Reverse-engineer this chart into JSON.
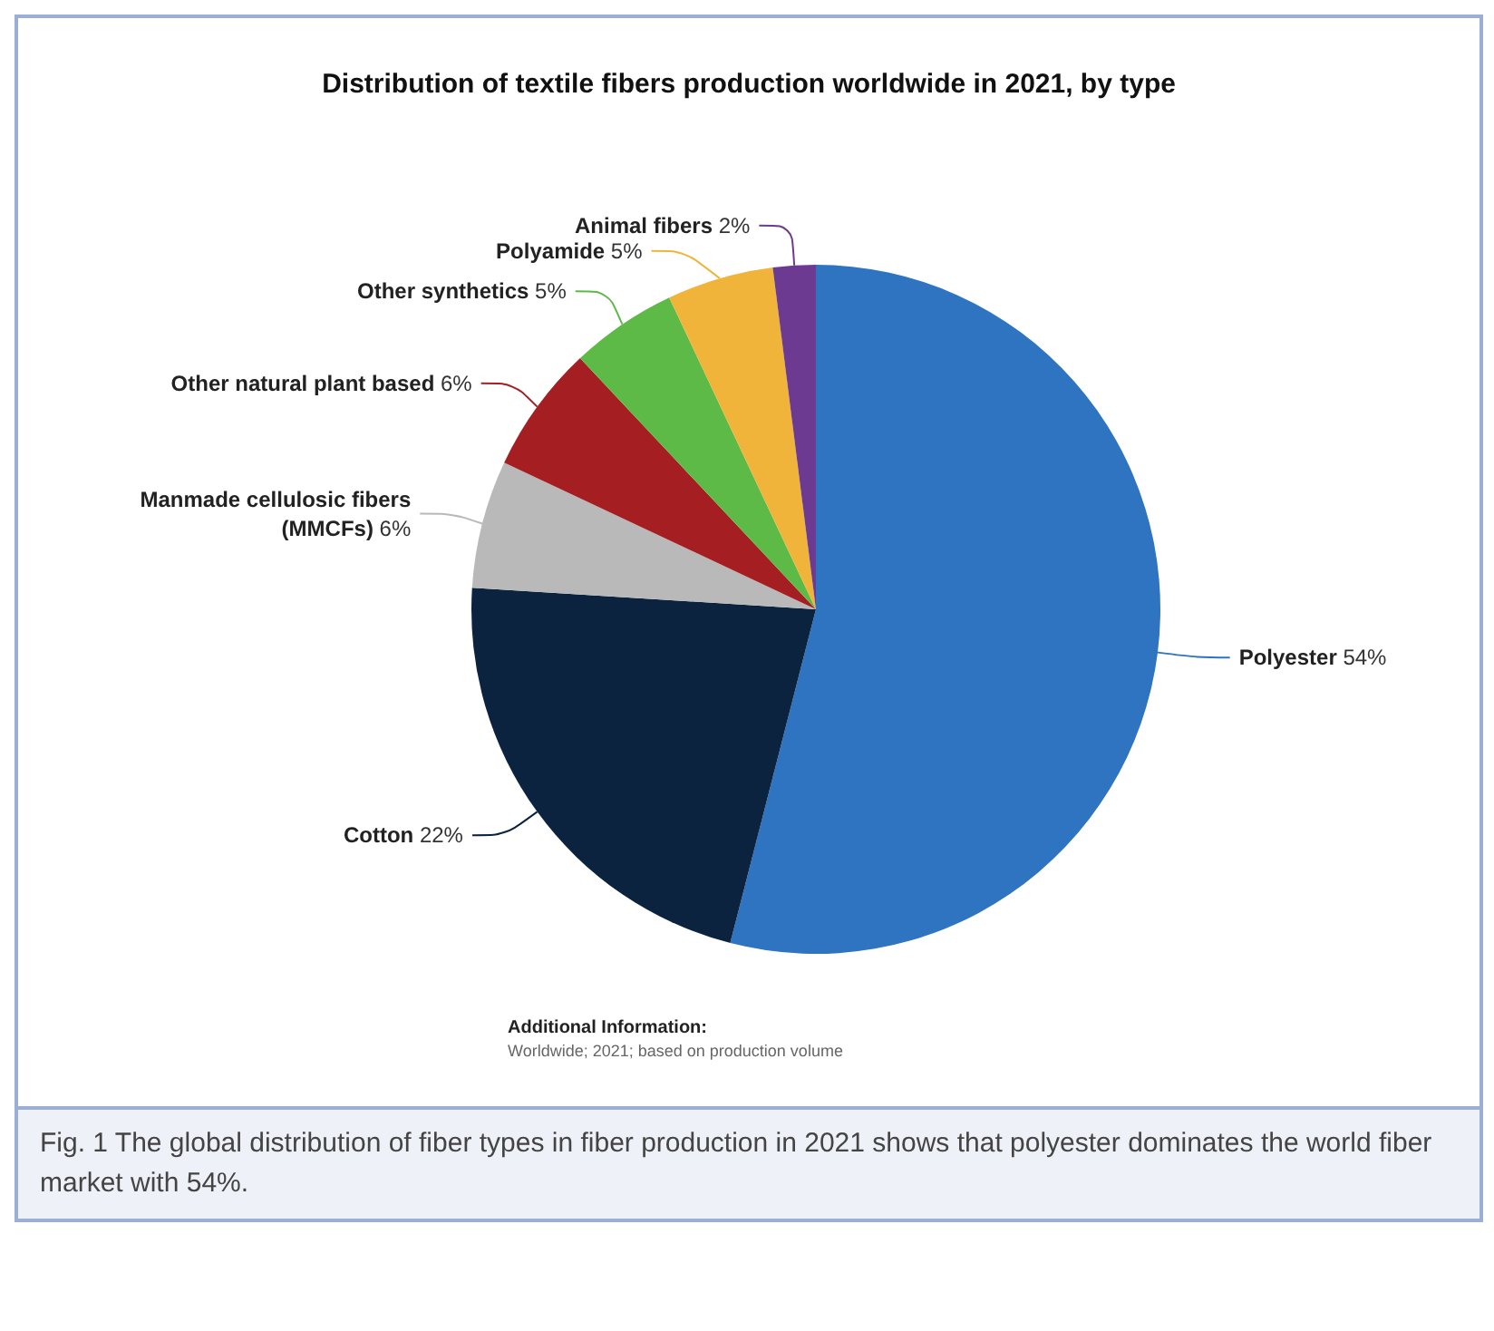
{
  "chart_data": {
    "type": "pie",
    "title": "Distribution of textile fibers production worldwide in 2021, by type",
    "categories": [
      "Polyester",
      "Cotton",
      "Manmade cellulosic fibers\n(MMCFs)",
      "Other natural plant based",
      "Other synthetics",
      "Polyamide",
      "Animal fibers"
    ],
    "values": [
      54,
      22,
      6,
      6,
      5,
      5,
      2
    ],
    "colors": [
      "#2e74c0",
      "#0c2340",
      "#b9b9b9",
      "#a51f22",
      "#5dba47",
      "#f0b43a",
      "#6c3a90"
    ],
    "legend": false,
    "value_labels": [
      "54%",
      "22%",
      "6%",
      "6%",
      "5%",
      "5%",
      "2%"
    ],
    "annotations": [
      "Additional Information:",
      "Worldwide; 2021; based on production volume",
      "Fig. 1  The global distribution of fiber types in fiber production in 2021 shows that polyester dominates the world fiber market with 54%."
    ]
  }
}
